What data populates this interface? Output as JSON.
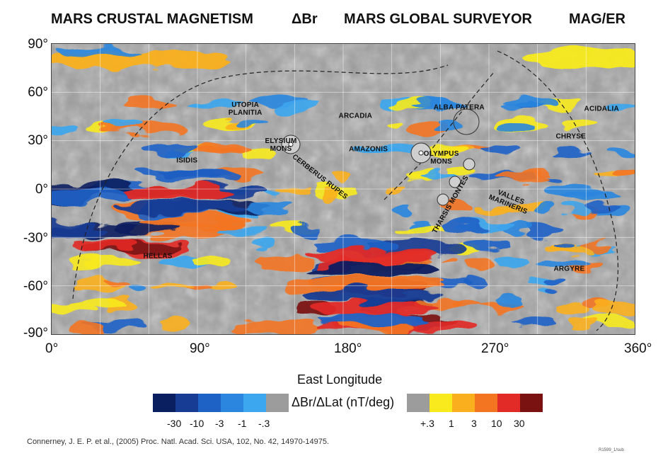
{
  "header": {
    "title_left": "MARS CRUSTAL MAGNETISM",
    "title_symbol": "ΔBr",
    "title_center": "MARS GLOBAL SURVEYOR",
    "title_right": "MAG/ER"
  },
  "axes": {
    "lat_ticks": [
      "90°",
      "60°",
      "30°",
      "0°",
      "-30°",
      "-60°",
      "-90°"
    ],
    "lon_ticks": [
      "0°",
      "90°",
      "180°",
      "270°",
      "360°"
    ],
    "xlabel": "East Longitude"
  },
  "regions": [
    {
      "label": "UTOPIA\nPLANITIA",
      "lon": 120,
      "lat": 49
    },
    {
      "label": "ARCADIA",
      "lon": 188,
      "lat": 45
    },
    {
      "label": "ALBA PATERA",
      "lon": 252,
      "lat": 50
    },
    {
      "label": "ACIDALIA",
      "lon": 340,
      "lat": 49
    },
    {
      "label": "CHRYSE",
      "lon": 321,
      "lat": 32
    },
    {
      "label": "ELYSIUM\nMONS",
      "lon": 142,
      "lat": 27
    },
    {
      "label": "AMAZONIS",
      "lon": 196,
      "lat": 24
    },
    {
      "label": "OLYMPUS\nMONS",
      "lon": 241,
      "lat": 19
    },
    {
      "label": "ISIDIS",
      "lon": 84,
      "lat": 17
    },
    {
      "label": "CERBERUS RUPES",
      "lon": 166,
      "lat": 7,
      "rotate": 38
    },
    {
      "label": "THARSIS MONTES",
      "lon": 247,
      "lat": -10,
      "rotate": -60
    },
    {
      "label": "VALLES\nMARINERIS",
      "lon": 283,
      "lat": -8,
      "rotate": 22
    },
    {
      "label": "HELLAS",
      "lon": 66,
      "lat": -42
    },
    {
      "label": "ARGYRE",
      "lon": 320,
      "lat": -50
    }
  ],
  "legend": {
    "title": "ΔBr/ΔLat (nT/deg)",
    "neg_ticks": [
      "-30",
      "-10",
      "-3",
      "-1",
      "-.3"
    ],
    "pos_ticks": [
      "+.3",
      "1",
      "3",
      "10",
      "30"
    ],
    "neg_colors": [
      "#0a1f60",
      "#163c94",
      "#1f62c6",
      "#2a86de",
      "#3ca6ee"
    ],
    "neutral_color": "#9c9c9c",
    "pos_colors": [
      "#f8ea1c",
      "#fab01e",
      "#f37522",
      "#e22a26",
      "#7a1212"
    ]
  },
  "colors": {
    "background": "#9a9a9a"
  },
  "citation": "Connerney, J. E. P. et al., (2005) Proc. Natl. Acad. Sci. USA, 102, No. 42, 14970-14975.",
  "figure_id": "R1599_1/sub"
}
